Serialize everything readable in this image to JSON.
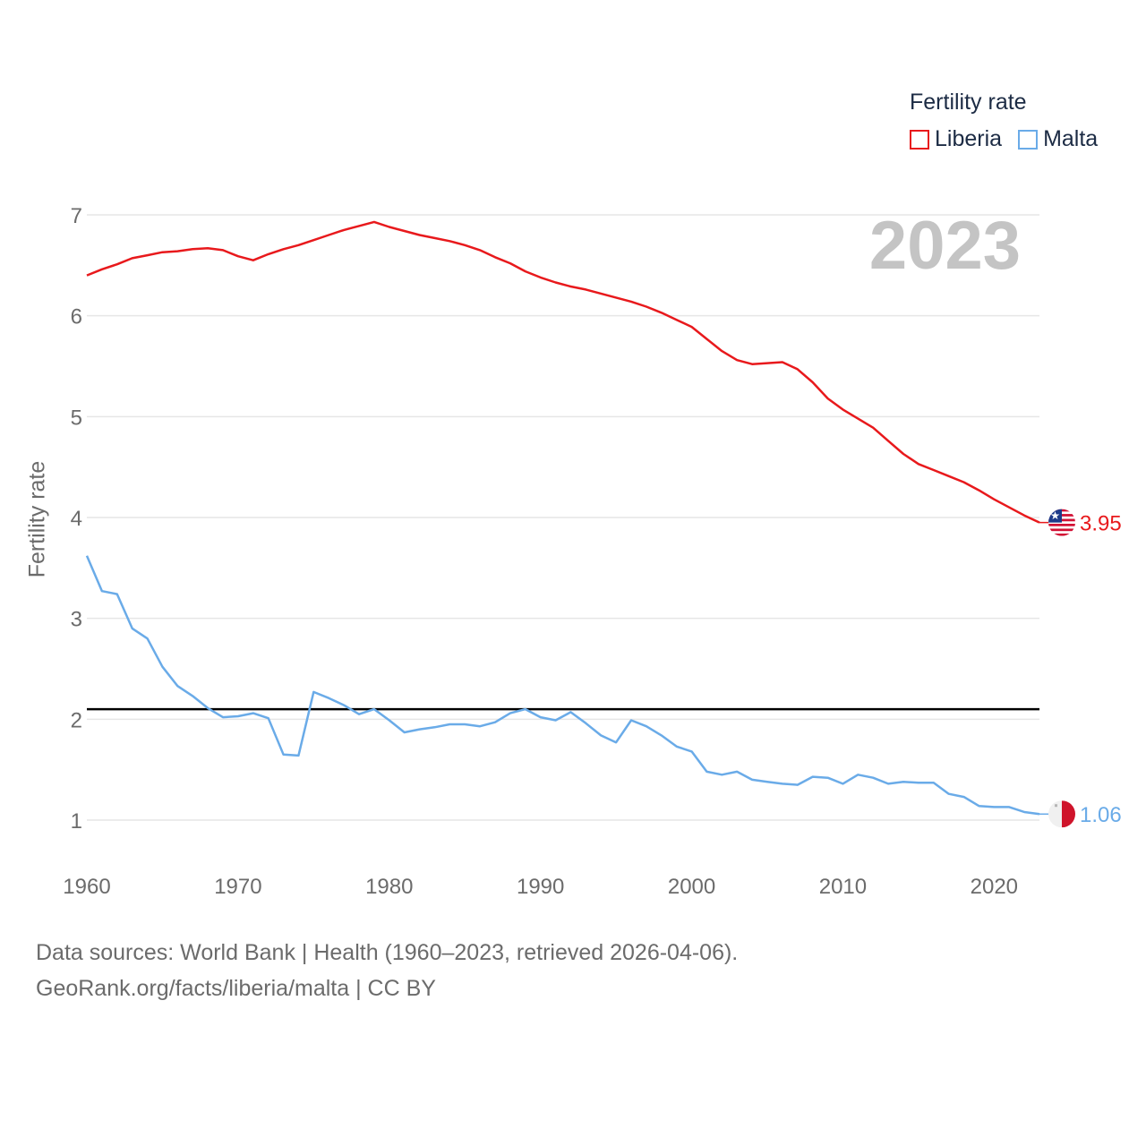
{
  "legend": {
    "title": "Fertility rate",
    "items": [
      {
        "label": "Liberia",
        "color": "#e8191c"
      },
      {
        "label": "Malta",
        "color": "#6aabe8"
      }
    ]
  },
  "footer": {
    "line1": "Data sources: World Bank | Health (1960–2023, retrieved 2026-04-06).",
    "line2": "GeoRank.org/facts/liberia/malta | CC BY"
  },
  "chart_data": {
    "type": "line",
    "title": "Fertility rate",
    "year_label": "2023",
    "xlabel": "",
    "ylabel": "Fertility rate",
    "xlim": [
      1960,
      2023
    ],
    "ylim": [
      0.7,
      7.1
    ],
    "x_ticks": [
      1960,
      1970,
      1980,
      1990,
      2000,
      2010,
      2020
    ],
    "y_ticks": [
      1,
      2,
      3,
      4,
      5,
      6,
      7
    ],
    "reference_line": {
      "value": 2.1,
      "color": "#000000"
    },
    "x": [
      1960,
      1961,
      1962,
      1963,
      1964,
      1965,
      1966,
      1967,
      1968,
      1969,
      1970,
      1971,
      1972,
      1973,
      1974,
      1975,
      1976,
      1977,
      1978,
      1979,
      1980,
      1981,
      1982,
      1983,
      1984,
      1985,
      1986,
      1987,
      1988,
      1989,
      1990,
      1991,
      1992,
      1993,
      1994,
      1995,
      1996,
      1997,
      1998,
      1999,
      2000,
      2001,
      2002,
      2003,
      2004,
      2005,
      2006,
      2007,
      2008,
      2009,
      2010,
      2011,
      2012,
      2013,
      2014,
      2015,
      2016,
      2017,
      2018,
      2019,
      2020,
      2021,
      2022,
      2023
    ],
    "series": [
      {
        "name": "Liberia",
        "color": "#e8191c",
        "end_label": "3.95",
        "values": [
          6.4,
          6.46,
          6.51,
          6.57,
          6.6,
          6.63,
          6.64,
          6.66,
          6.67,
          6.65,
          6.59,
          6.55,
          6.61,
          6.66,
          6.7,
          6.75,
          6.8,
          6.85,
          6.89,
          6.93,
          6.88,
          6.84,
          6.8,
          6.77,
          6.74,
          6.7,
          6.65,
          6.58,
          6.52,
          6.44,
          6.38,
          6.33,
          6.29,
          6.26,
          6.22,
          6.18,
          6.14,
          6.09,
          6.03,
          5.96,
          5.89,
          5.77,
          5.65,
          5.56,
          5.52,
          5.53,
          5.54,
          5.47,
          5.34,
          5.18,
          5.07,
          4.98,
          4.89,
          4.76,
          4.63,
          4.53,
          4.47,
          4.41,
          4.35,
          4.27,
          4.18,
          4.1,
          4.02,
          3.95
        ]
      },
      {
        "name": "Malta",
        "color": "#6aabe8",
        "end_label": "1.06",
        "values": [
          3.62,
          3.27,
          3.24,
          2.9,
          2.8,
          2.52,
          2.33,
          2.23,
          2.11,
          2.02,
          2.03,
          2.06,
          2.01,
          1.65,
          1.64,
          2.27,
          2.21,
          2.14,
          2.05,
          2.1,
          1.99,
          1.87,
          1.9,
          1.92,
          1.95,
          1.95,
          1.93,
          1.97,
          2.06,
          2.1,
          2.02,
          1.99,
          2.07,
          1.96,
          1.84,
          1.77,
          1.99,
          1.93,
          1.84,
          1.73,
          1.68,
          1.48,
          1.45,
          1.48,
          1.4,
          1.38,
          1.36,
          1.35,
          1.43,
          1.42,
          1.36,
          1.45,
          1.42,
          1.36,
          1.38,
          1.37,
          1.37,
          1.26,
          1.23,
          1.14,
          1.13,
          1.13,
          1.08,
          1.06
        ]
      }
    ]
  }
}
